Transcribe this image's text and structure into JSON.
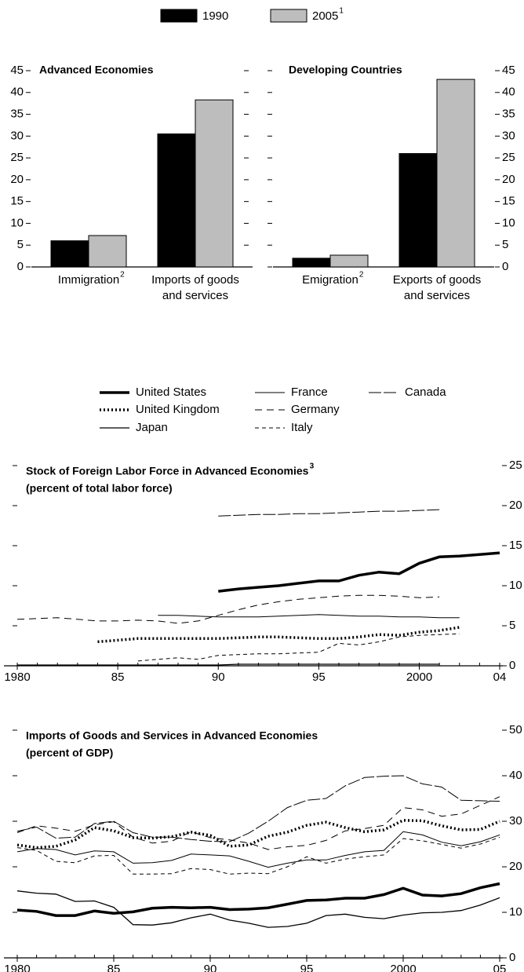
{
  "chart_data": [
    {
      "type": "bar",
      "title": "Advanced Economies",
      "axis_side": "left",
      "categories": [
        "Immigration",
        "Imports of goods and services"
      ],
      "category_notes": [
        "2",
        null
      ],
      "series": [
        {
          "name": "1990",
          "color": "#000000",
          "values": [
            6,
            30.5
          ]
        },
        {
          "name": "2005",
          "note": "1",
          "color": "#bdbdbd",
          "values": [
            7.2,
            38.3
          ]
        }
      ],
      "ylim": [
        0,
        45
      ],
      "yticks": [
        0,
        5,
        10,
        15,
        20,
        25,
        30,
        35,
        40,
        45
      ]
    },
    {
      "type": "bar",
      "title": "Developing Countries",
      "axis_side": "right",
      "categories": [
        "Emigration",
        "Exports of goods and services"
      ],
      "category_notes": [
        "2",
        null
      ],
      "series": [
        {
          "name": "1990",
          "color": "#000000",
          "values": [
            2,
            26
          ]
        },
        {
          "name": "2005",
          "note": "1",
          "color": "#bdbdbd",
          "values": [
            2.7,
            43
          ]
        }
      ],
      "ylim": [
        0,
        45
      ],
      "yticks": [
        0,
        5,
        10,
        15,
        20,
        25,
        30,
        35,
        40,
        45
      ]
    },
    {
      "type": "line",
      "title": "Stock of Foreign Labor Force in Advanced Economies",
      "title_note": "3",
      "subtitle": "(percent of total labor force)",
      "axis_side": "right",
      "x": [
        1980,
        1981,
        1982,
        1983,
        1984,
        1985,
        1986,
        1987,
        1988,
        1989,
        1990,
        1991,
        1992,
        1993,
        1994,
        1995,
        1996,
        1997,
        1998,
        1999,
        2000,
        2001,
        2002,
        2003,
        2004
      ],
      "xlim": [
        1980,
        2004
      ],
      "xticks": [
        1980,
        {
          "value": 1985,
          "label": "85"
        },
        {
          "value": 1990,
          "label": "90"
        },
        {
          "value": 1995,
          "label": "95"
        },
        2000,
        {
          "value": 2004,
          "label": "04"
        }
      ],
      "ylim": [
        0,
        25
      ],
      "yticks": [
        0,
        5,
        10,
        15,
        20,
        25
      ],
      "series": [
        {
          "name": "United States",
          "color": "#000",
          "width": 3.5,
          "dash": "none",
          "values": [
            null,
            null,
            null,
            null,
            null,
            null,
            null,
            null,
            null,
            null,
            9.3,
            9.6,
            9.8,
            10.0,
            10.3,
            10.6,
            10.6,
            11.3,
            11.7,
            11.5,
            12.8,
            13.6,
            13.7,
            13.9,
            14.1
          ]
        },
        {
          "name": "United Kingdom",
          "color": "#000",
          "width": 3.5,
          "dash": "2 3",
          "values": [
            null,
            null,
            null,
            null,
            3.0,
            3.2,
            3.4,
            3.4,
            3.4,
            3.4,
            3.4,
            3.5,
            3.6,
            3.6,
            3.5,
            3.4,
            3.4,
            3.6,
            3.9,
            3.8,
            4.2,
            4.4,
            4.8,
            null,
            null
          ]
        },
        {
          "name": "Japan",
          "color": "#000",
          "width": 1.3,
          "dash": "none",
          "values": [
            0.1,
            0.1,
            0.1,
            0.1,
            0.1,
            0.1,
            0.1,
            0.1,
            0.1,
            0.1,
            0.1,
            0.2,
            0.2,
            0.2,
            0.2,
            0.2,
            0.2,
            0.2,
            0.2,
            0.2,
            0.2,
            0.2,
            null,
            null,
            null
          ]
        },
        {
          "name": "France",
          "color": "#000",
          "width": 1,
          "dash": "none",
          "values": [
            null,
            null,
            null,
            null,
            null,
            null,
            null,
            6.3,
            6.3,
            6.2,
            6.1,
            6.1,
            6.1,
            6.2,
            6.3,
            6.4,
            6.3,
            6.2,
            6.2,
            6.1,
            6.1,
            6.0,
            6.0,
            null,
            null
          ]
        },
        {
          "name": "Germany",
          "color": "#000",
          "width": 1,
          "dash": "9 6",
          "values": [
            5.8,
            5.9,
            6.0,
            5.8,
            5.6,
            5.6,
            5.7,
            5.6,
            5.3,
            5.6,
            6.3,
            7.0,
            7.6,
            8.0,
            8.3,
            8.5,
            8.7,
            8.8,
            8.8,
            8.7,
            8.5,
            8.6,
            null,
            null,
            null
          ]
        },
        {
          "name": "Italy",
          "color": "#000",
          "width": 1,
          "dash": "5 4",
          "values": [
            null,
            null,
            null,
            null,
            null,
            null,
            0.6,
            0.8,
            1.0,
            0.8,
            1.3,
            1.4,
            1.5,
            1.5,
            1.6,
            1.7,
            2.8,
            2.6,
            3.0,
            3.6,
            3.8,
            3.9,
            4.0,
            null,
            null
          ]
        },
        {
          "name": "Canada",
          "color": "#000",
          "width": 1,
          "dash": "16 3",
          "values": [
            null,
            null,
            null,
            null,
            null,
            null,
            null,
            null,
            null,
            null,
            18.7,
            18.8,
            18.9,
            18.9,
            19.0,
            19.0,
            19.1,
            19.2,
            19.3,
            19.3,
            19.4,
            19.5,
            null,
            null,
            null
          ]
        }
      ]
    },
    {
      "type": "line",
      "title": "Imports of Goods and Services in Advanced Economies",
      "subtitle": "(percent of GDP)",
      "axis_side": "right",
      "x": [
        1980,
        1981,
        1982,
        1983,
        1984,
        1985,
        1986,
        1987,
        1988,
        1989,
        1990,
        1991,
        1992,
        1993,
        1994,
        1995,
        1996,
        1997,
        1998,
        1999,
        2000,
        2001,
        2002,
        2003,
        2004,
        2005
      ],
      "xlim": [
        1980,
        2005
      ],
      "xticks": [
        1980,
        {
          "value": 1985,
          "label": "85"
        },
        {
          "value": 1990,
          "label": "90"
        },
        {
          "value": 1995,
          "label": "95"
        },
        2000,
        {
          "value": 2005,
          "label": "05"
        }
      ],
      "ylim": [
        0,
        50
      ],
      "yticks": [
        0,
        10,
        20,
        30,
        40,
        50
      ],
      "series": [
        {
          "name": "United States",
          "color": "#000",
          "width": 3.5,
          "dash": "none",
          "values": [
            10.5,
            10.2,
            9.3,
            9.3,
            10.3,
            9.8,
            10.1,
            10.9,
            11.1,
            11.0,
            11.1,
            10.6,
            10.7,
            11.0,
            11.8,
            12.6,
            12.7,
            13.1,
            13.1,
            13.9,
            15.3,
            13.8,
            13.6,
            14.1,
            15.4,
            16.3
          ]
        },
        {
          "name": "United Kingdom",
          "color": "#000",
          "width": 3.5,
          "dash": "2 3",
          "values": [
            24.8,
            24.2,
            24.5,
            25.9,
            28.6,
            27.9,
            26.4,
            26.3,
            26.6,
            27.6,
            26.9,
            24.5,
            24.8,
            26.7,
            27.6,
            29.1,
            29.8,
            28.6,
            27.7,
            28.1,
            30.2,
            30.1,
            29.0,
            28.1,
            28.2,
            30.0
          ]
        },
        {
          "name": "Japan",
          "color": "#000",
          "width": 1.3,
          "dash": "none",
          "values": [
            14.7,
            14.2,
            14.0,
            12.4,
            12.5,
            11.1,
            7.3,
            7.2,
            7.7,
            8.8,
            9.6,
            8.3,
            7.6,
            6.7,
            6.9,
            7.6,
            9.3,
            9.6,
            8.9,
            8.6,
            9.4,
            9.9,
            10.0,
            10.4,
            11.6,
            13.2
          ]
        },
        {
          "name": "France",
          "color": "#000",
          "width": 1,
          "dash": "none",
          "values": [
            23.3,
            24.0,
            23.8,
            22.6,
            23.5,
            23.3,
            20.8,
            20.9,
            21.4,
            22.8,
            22.6,
            22.4,
            21.2,
            19.9,
            20.8,
            21.5,
            21.5,
            22.5,
            23.3,
            23.6,
            27.7,
            27.0,
            25.4,
            24.6,
            25.5,
            27.0
          ]
        },
        {
          "name": "Germany",
          "color": "#000",
          "width": 1,
          "dash": "9 6",
          "values": [
            27.5,
            29.0,
            28.5,
            27.8,
            29.2,
            29.9,
            26.5,
            25.2,
            25.6,
            27.7,
            26.4,
            25.9,
            25.2,
            23.8,
            24.4,
            24.7,
            25.8,
            27.9,
            28.4,
            29.1,
            33.0,
            32.5,
            31.1,
            31.6,
            33.5,
            35.4
          ]
        },
        {
          "name": "Italy",
          "color": "#000",
          "width": 1,
          "dash": "5 4",
          "values": [
            24.2,
            23.6,
            21.2,
            20.9,
            22.4,
            22.5,
            18.4,
            18.4,
            18.5,
            19.6,
            19.4,
            18.4,
            18.6,
            18.5,
            20.0,
            22.2,
            20.8,
            21.7,
            22.2,
            22.6,
            26.2,
            25.7,
            24.9,
            24.1,
            25.0,
            26.5
          ]
        },
        {
          "name": "Canada",
          "color": "#000",
          "width": 1,
          "dash": "16 3",
          "values": [
            27.8,
            28.7,
            26.3,
            26.5,
            29.5,
            30.0,
            27.5,
            26.5,
            26.5,
            26.0,
            25.6,
            25.5,
            27.4,
            30.0,
            33.0,
            34.6,
            35.0,
            37.8,
            39.6,
            39.9,
            40.0,
            38.2,
            37.5,
            34.6,
            34.5,
            34.4
          ]
        }
      ]
    }
  ]
}
